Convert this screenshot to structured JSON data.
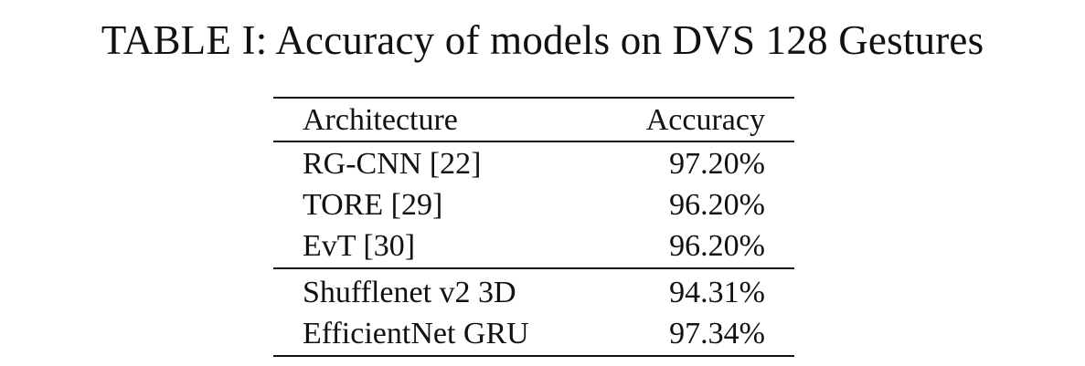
{
  "caption": "TABLE I: Accuracy of models on DVS 128 Gestures",
  "table": {
    "headers": [
      "Architecture",
      "Accuracy"
    ],
    "group1": [
      {
        "architecture": "RG-CNN [22]",
        "accuracy": "97.20%"
      },
      {
        "architecture": "TORE [29]",
        "accuracy": "96.20%"
      },
      {
        "architecture": "EvT [30]",
        "accuracy": "96.20%"
      }
    ],
    "group2": [
      {
        "architecture": "Shufflenet v2 3D",
        "accuracy": "94.31%"
      },
      {
        "architecture": "EfficientNet GRU",
        "accuracy": "97.34%"
      }
    ]
  }
}
